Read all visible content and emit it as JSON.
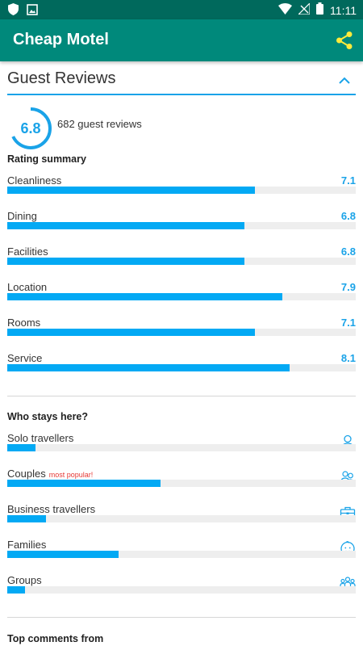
{
  "status_bar": {
    "time": "11:11",
    "left_icons": [
      "shield-icon",
      "image-icon"
    ],
    "right_icons": [
      "wifi-icon",
      "no-signal-icon",
      "battery-icon"
    ]
  },
  "app_bar": {
    "title": "Cheap Motel",
    "share_icon": "share-icon",
    "background": "#00897b",
    "accent": "#ffeb3b"
  },
  "guest_reviews": {
    "title": "Guest Reviews",
    "collapse_icon": "chevron-up-icon",
    "score": "6.8",
    "score_fraction": 0.68,
    "review_count": "682 guest reviews",
    "accent_color": "#03a9f4"
  },
  "rating_summary": {
    "heading": "Rating summary",
    "items": [
      {
        "label": "Cleanliness",
        "value": "7.1",
        "fraction": 0.71
      },
      {
        "label": "Dining",
        "value": "6.8",
        "fraction": 0.68
      },
      {
        "label": "Facilities",
        "value": "6.8",
        "fraction": 0.68
      },
      {
        "label": "Location",
        "value": "7.9",
        "fraction": 0.79
      },
      {
        "label": "Rooms",
        "value": "7.1",
        "fraction": 0.71
      },
      {
        "label": "Service",
        "value": "8.1",
        "fraction": 0.81
      }
    ]
  },
  "who_stays": {
    "heading": "Who stays here?",
    "items": [
      {
        "label": "Solo travellers",
        "tag": "",
        "fraction": 0.08,
        "icon": "person-icon"
      },
      {
        "label": "Couples",
        "tag": "most popular!",
        "fraction": 0.44,
        "icon": "couple-icon"
      },
      {
        "label": "Business travellers",
        "tag": "",
        "fraction": 0.11,
        "icon": "briefcase-icon"
      },
      {
        "label": "Families",
        "tag": "",
        "fraction": 0.32,
        "icon": "baby-icon"
      },
      {
        "label": "Groups",
        "tag": "",
        "fraction": 0.05,
        "icon": "group-icon"
      }
    ]
  },
  "top_comments": {
    "heading": "Top comments from"
  }
}
